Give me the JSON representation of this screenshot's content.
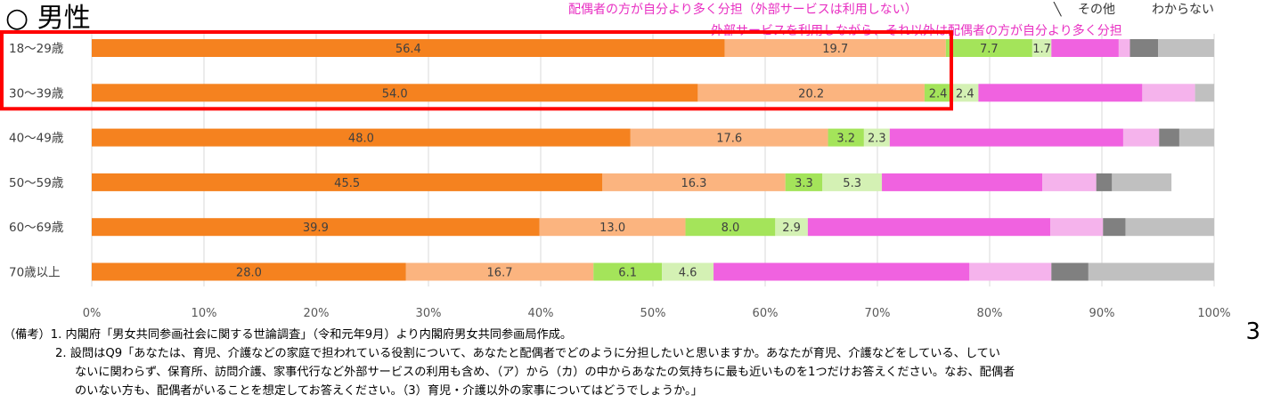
{
  "header": {
    "title": "○ 男性",
    "labels": {
      "share_self_more": "配偶者の方が自分より多く分担（外部サービスは利用しない）",
      "other": "その他",
      "unknown": "わからない",
      "external_spouse_more": "外部サービスを利用しながら、それ以外は配偶者の方が自分より多く分担"
    }
  },
  "chart_data": {
    "type": "bar",
    "orientation": "horizontal",
    "stacked": true,
    "categories": [
      "18〜29歳",
      "30〜39歳",
      "40〜49歳",
      "50〜59歳",
      "60〜69歳",
      "70歳以上"
    ],
    "x_ticks": [
      "0%",
      "10%",
      "20%",
      "30%",
      "40%",
      "50%",
      "60%",
      "70%",
      "80%",
      "90%",
      "100%"
    ],
    "xlim": [
      0,
      100
    ],
    "grid": true,
    "highlight_categories": [
      "18〜29歳",
      "30〜39歳"
    ],
    "highlight_color": "#ff0000",
    "series": [
      {
        "color": "#f5821f",
        "values": [
          56.4,
          54.0,
          48.0,
          45.5,
          39.9,
          28.0
        ],
        "labels": [
          "56.4",
          "54.0",
          "48.0",
          "45.5",
          "39.9",
          "28.0"
        ]
      },
      {
        "color": "#fbb47f",
        "values": [
          19.7,
          20.2,
          17.6,
          16.3,
          13.0,
          16.7
        ],
        "labels": [
          "19.7",
          "20.2",
          "17.6",
          "16.3",
          "13.0",
          "16.7"
        ]
      },
      {
        "color": "#a4e45a",
        "values": [
          7.7,
          2.4,
          3.2,
          3.3,
          8.0,
          6.1
        ],
        "labels": [
          "7.7",
          "2.4",
          "3.2",
          "3.3",
          "8.0",
          "6.1"
        ]
      },
      {
        "color": "#d4f1b4",
        "values": [
          1.7,
          2.4,
          2.3,
          5.3,
          2.9,
          4.6
        ],
        "labels": [
          "1.7",
          "2.4",
          "2.3",
          "5.3",
          "2.9",
          "4.6"
        ]
      },
      {
        "color": "#f062e0",
        "values": [
          6.0,
          14.6,
          20.8,
          14.3,
          21.6,
          22.8
        ],
        "labels": [
          "",
          "",
          "",
          "",
          "",
          ""
        ]
      },
      {
        "color": "#f5b3ec",
        "values": [
          1.0,
          4.7,
          3.2,
          4.8,
          4.7,
          7.3
        ],
        "labels": [
          "",
          "",
          "",
          "",
          "",
          ""
        ]
      },
      {
        "color": "#808080",
        "values": [
          2.5,
          0.0,
          1.8,
          1.4,
          2.0,
          3.3
        ],
        "labels": [
          "",
          "",
          "",
          "",
          "",
          ""
        ]
      },
      {
        "color": "#c0c0c0",
        "values": [
          5.0,
          1.7,
          3.1,
          5.3,
          7.9,
          11.2
        ],
        "labels": [
          "",
          "",
          "",
          "",
          "",
          ""
        ]
      }
    ]
  },
  "notes": {
    "line1": "（備考）1. 内閣府「男女共同参画社会に関する世論調査」（令和元年9月）より内閣府男女共同参画局作成。",
    "line2": "2. 設問はQ9「あなたは、育児、介護などの家庭で担われている役割について、あなたと配偶者でどのように分担したいと思いますか。あなたが育児、介護などをしている、してい",
    "line3": "ないに関わらず、保育所、訪問介護、家事代行など外部サービスの利用も含め、（ア）から（カ）の中からあなたの気持ちに最も近いものを1つだけお答えください。なお、配偶者",
    "line4": "のいない方も、配偶者がいることを想定してお答えください。（3）育児・介護以外の家事についてはどうでしょうか。」"
  },
  "page_number": "3"
}
